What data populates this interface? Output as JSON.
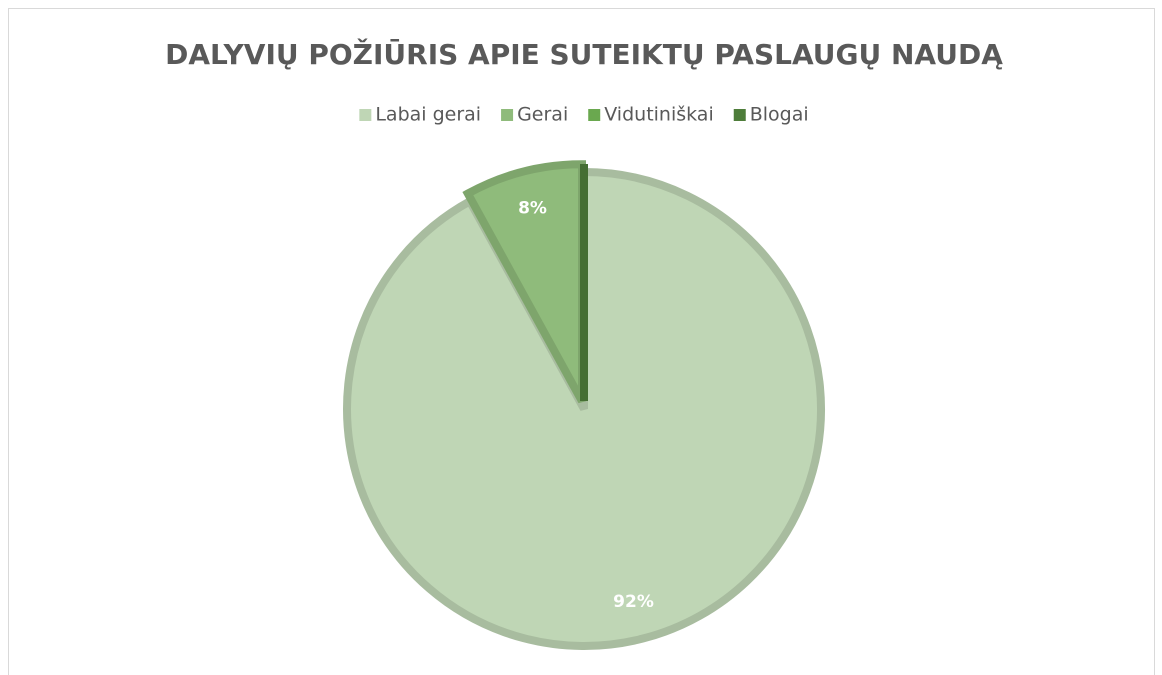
{
  "chart_data": {
    "type": "pie",
    "title": "DALYVIŲ POŽIŪRIS APIE SUTEIKTŲ PASLAUGŲ NAUDĄ",
    "categories": [
      "Labai gerai",
      "Gerai",
      "Vidutiniškai",
      "Blogai"
    ],
    "values": [
      92,
      8,
      0,
      0
    ],
    "value_labels": [
      "92%",
      "8%",
      null,
      null
    ],
    "colors": [
      "#bfd6b5",
      "#8fbb7b",
      "#6aa84f",
      "#4e7d3a"
    ],
    "legend": "top"
  }
}
